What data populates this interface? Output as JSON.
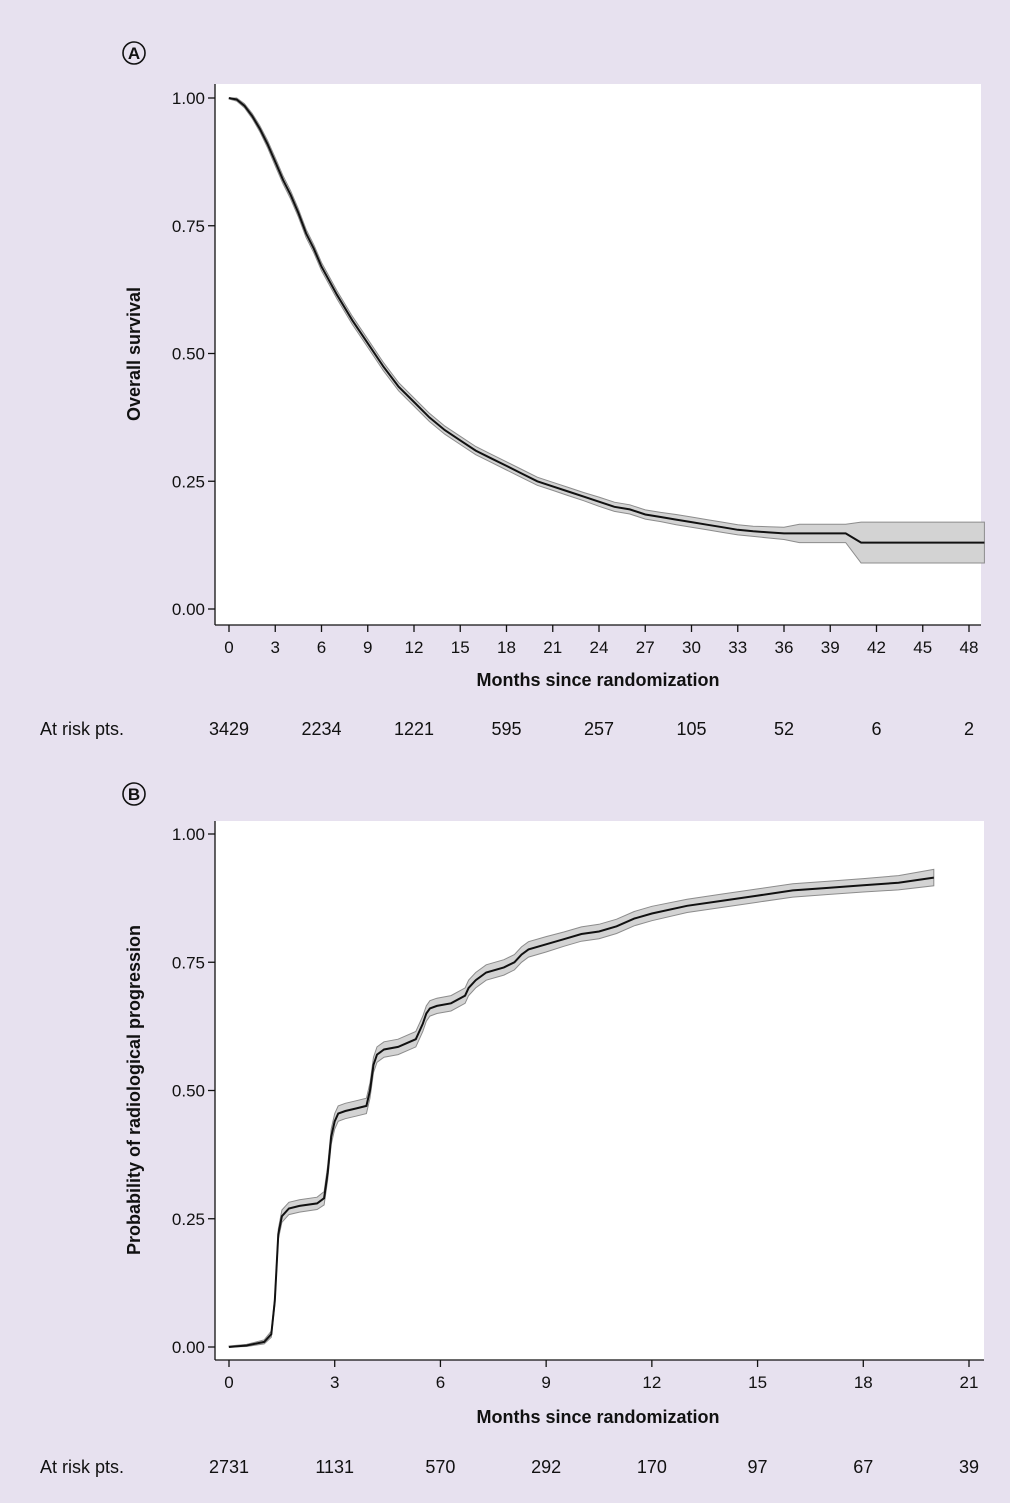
{
  "chart_data": [
    {
      "type": "line",
      "panel_label": "A",
      "xlabel": "Months since randomization",
      "ylabel": "Overall survival",
      "xlim": [
        0,
        49
      ],
      "ylim": [
        0,
        1
      ],
      "x_ticks": [
        0,
        3,
        6,
        9,
        12,
        15,
        18,
        21,
        24,
        27,
        30,
        33,
        36,
        39,
        42,
        45,
        48
      ],
      "y_ticks": [
        "0.00",
        "0.25",
        "0.50",
        "0.75",
        "1.00"
      ],
      "y_tick_values": [
        0,
        0.25,
        0.5,
        0.75,
        1
      ],
      "grid": false,
      "confidence_band": true,
      "series": [
        {
          "x": [
            0,
            0.5,
            1,
            1.5,
            2,
            2.5,
            3,
            3.5,
            4,
            4.5,
            5,
            5.5,
            6,
            7,
            8,
            9,
            10,
            11,
            12,
            13,
            14,
            15,
            16,
            17,
            18,
            19,
            20,
            21,
            22,
            23,
            24,
            25,
            26,
            27,
            28,
            29,
            30,
            31,
            32,
            33,
            34,
            35,
            36,
            37,
            38,
            39,
            40,
            41,
            42,
            44,
            46,
            48,
            49
          ],
          "y": [
            1.0,
            0.997,
            0.985,
            0.965,
            0.94,
            0.91,
            0.875,
            0.84,
            0.81,
            0.775,
            0.735,
            0.705,
            0.67,
            0.615,
            0.565,
            0.52,
            0.475,
            0.435,
            0.405,
            0.375,
            0.35,
            0.33,
            0.31,
            0.295,
            0.28,
            0.265,
            0.25,
            0.24,
            0.23,
            0.22,
            0.21,
            0.2,
            0.195,
            0.185,
            0.18,
            0.175,
            0.17,
            0.165,
            0.16,
            0.155,
            0.152,
            0.15,
            0.148,
            0.148,
            0.148,
            0.148,
            0.148,
            0.13,
            0.13,
            0.13,
            0.13,
            0.13,
            0.13
          ],
          "ci_halfwidth": [
            0.002,
            0.003,
            0.004,
            0.005,
            0.006,
            0.007,
            0.008,
            0.008,
            0.008,
            0.008,
            0.008,
            0.008,
            0.008,
            0.008,
            0.008,
            0.008,
            0.008,
            0.008,
            0.008,
            0.008,
            0.008,
            0.008,
            0.008,
            0.008,
            0.008,
            0.008,
            0.008,
            0.008,
            0.008,
            0.008,
            0.009,
            0.009,
            0.009,
            0.009,
            0.009,
            0.01,
            0.01,
            0.01,
            0.01,
            0.01,
            0.01,
            0.011,
            0.012,
            0.018,
            0.018,
            0.018,
            0.018,
            0.04,
            0.04,
            0.04,
            0.04,
            0.04,
            0.04
          ]
        }
      ],
      "at_risk": {
        "label": "At risk pts.",
        "times": [
          0,
          6,
          12,
          18,
          24,
          30,
          36,
          42,
          48
        ],
        "values": [
          "3429",
          "2234",
          "1221",
          "595",
          "257",
          "105",
          "52",
          "6",
          "2"
        ]
      }
    },
    {
      "type": "line",
      "panel_label": "B",
      "xlabel": "Months since randomization",
      "ylabel": "Probability of radiological progression",
      "xlim": [
        -0.3,
        21.3
      ],
      "ylim": [
        0,
        1
      ],
      "x_ticks": [
        0,
        3,
        6,
        9,
        12,
        15,
        18,
        21
      ],
      "y_ticks": [
        "0.00",
        "0.25",
        "0.50",
        "0.75",
        "1.00"
      ],
      "y_tick_values": [
        0,
        0.25,
        0.5,
        0.75,
        1
      ],
      "grid": false,
      "confidence_band": true,
      "series": [
        {
          "x": [
            0,
            0.5,
            1.0,
            1.2,
            1.3,
            1.4,
            1.5,
            1.7,
            2.0,
            2.5,
            2.7,
            2.8,
            2.9,
            3.0,
            3.1,
            3.3,
            3.6,
            3.9,
            4.0,
            4.1,
            4.2,
            4.4,
            4.8,
            5.3,
            5.5,
            5.6,
            5.7,
            5.9,
            6.3,
            6.7,
            6.8,
            7.0,
            7.3,
            7.8,
            8.1,
            8.3,
            8.5,
            9.0,
            9.5,
            10.0,
            10.5,
            11.0,
            11.5,
            12.0,
            13.0,
            14.0,
            15.0,
            16.0,
            17.0,
            18.0,
            19.0,
            20.0
          ],
          "y": [
            0.0,
            0.003,
            0.01,
            0.025,
            0.09,
            0.22,
            0.255,
            0.27,
            0.275,
            0.28,
            0.29,
            0.34,
            0.41,
            0.44,
            0.455,
            0.46,
            0.465,
            0.47,
            0.5,
            0.55,
            0.57,
            0.58,
            0.585,
            0.6,
            0.63,
            0.65,
            0.66,
            0.665,
            0.67,
            0.685,
            0.7,
            0.715,
            0.73,
            0.74,
            0.75,
            0.765,
            0.775,
            0.785,
            0.795,
            0.805,
            0.81,
            0.82,
            0.835,
            0.845,
            0.86,
            0.87,
            0.88,
            0.89,
            0.895,
            0.9,
            0.905,
            0.915
          ],
          "ci_halfwidth": [
            0.002,
            0.002,
            0.004,
            0.006,
            0.008,
            0.01,
            0.012,
            0.012,
            0.012,
            0.012,
            0.013,
            0.014,
            0.015,
            0.015,
            0.015,
            0.015,
            0.015,
            0.015,
            0.015,
            0.015,
            0.015,
            0.015,
            0.015,
            0.015,
            0.015,
            0.015,
            0.015,
            0.015,
            0.015,
            0.015,
            0.015,
            0.015,
            0.015,
            0.015,
            0.015,
            0.015,
            0.015,
            0.015,
            0.014,
            0.014,
            0.014,
            0.014,
            0.014,
            0.014,
            0.013,
            0.013,
            0.013,
            0.013,
            0.013,
            0.013,
            0.014,
            0.016
          ]
        }
      ],
      "at_risk": {
        "label": "At risk pts.",
        "times": [
          0,
          3,
          6,
          9,
          12,
          15,
          18,
          21
        ],
        "values": [
          "2731",
          "1131",
          "570",
          "292",
          "170",
          "97",
          "67",
          "39"
        ]
      }
    }
  ]
}
